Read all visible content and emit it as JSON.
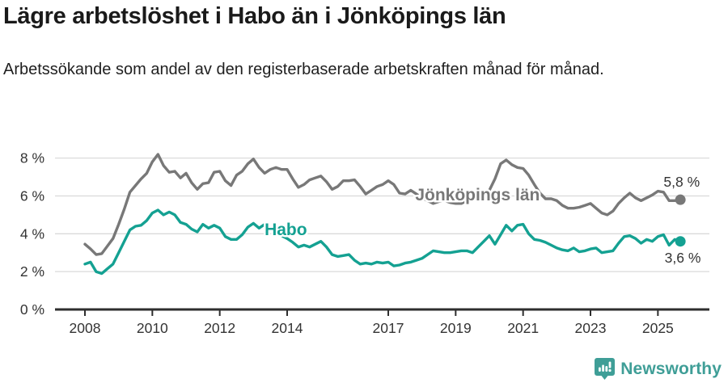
{
  "header": {
    "title": "Lägre arbetslöshet i Habo än i Jönköpings län",
    "subtitle": "Arbetssökande som andel av den registerbaserade arbetskraften månad för månad."
  },
  "chart_data": {
    "type": "line",
    "unit": "%",
    "grid": true,
    "x_start": 2008.0,
    "x_step_years": 0.1666667,
    "xlim": [
      2007.1,
      2026.5
    ],
    "ylim": [
      0,
      9.5
    ],
    "x_ticks": [
      2008,
      2010,
      2012,
      2014,
      2017,
      2019,
      2021,
      2023,
      2025
    ],
    "x_tick_labels": [
      "2008",
      "2010",
      "2012",
      "2014",
      "2017",
      "2019",
      "2021",
      "2023",
      "2025"
    ],
    "y_ticks": [
      0,
      2,
      4,
      6,
      8
    ],
    "y_tick_labels": [
      "0 %",
      "2 %",
      "4 %",
      "6 %",
      "8 %"
    ],
    "series": [
      {
        "name": "Jönköpings län",
        "color": "#787878",
        "end_label": "5,8 %",
        "end_value": 5.8,
        "values": [
          3.45,
          3.2,
          2.9,
          2.95,
          3.35,
          3.75,
          4.5,
          5.3,
          6.2,
          6.55,
          6.9,
          7.2,
          7.8,
          8.2,
          7.6,
          7.25,
          7.3,
          6.95,
          7.2,
          6.7,
          6.35,
          6.65,
          6.7,
          7.25,
          7.3,
          6.8,
          6.55,
          7.1,
          7.3,
          7.7,
          7.95,
          7.5,
          7.2,
          7.4,
          7.5,
          7.4,
          7.4,
          6.9,
          6.45,
          6.6,
          6.85,
          6.95,
          7.05,
          6.75,
          6.35,
          6.5,
          6.8,
          6.8,
          6.85,
          6.5,
          6.1,
          6.3,
          6.5,
          6.6,
          6.8,
          6.6,
          6.15,
          6.1,
          6.3,
          6.1,
          5.9,
          5.75,
          5.6,
          5.7,
          5.75,
          5.65,
          5.6,
          5.6,
          5.75,
          5.8,
          5.9,
          6.0,
          6.3,
          6.9,
          7.7,
          7.9,
          7.65,
          7.5,
          7.45,
          7.1,
          6.6,
          6.15,
          5.85,
          5.85,
          5.75,
          5.5,
          5.35,
          5.35,
          5.4,
          5.5,
          5.6,
          5.35,
          5.1,
          5.0,
          5.2,
          5.6,
          5.9,
          6.15,
          5.9,
          5.75,
          5.9,
          6.05,
          6.25,
          6.2,
          5.75,
          5.75,
          5.8
        ]
      },
      {
        "name": "Habo",
        "color": "#14a192",
        "end_label": "3,6 %",
        "end_value": 3.6,
        "values": [
          2.4,
          2.5,
          2.0,
          1.9,
          2.15,
          2.4,
          3.0,
          3.6,
          4.2,
          4.4,
          4.45,
          4.7,
          5.1,
          5.25,
          5.0,
          5.15,
          5.0,
          4.6,
          4.5,
          4.25,
          4.1,
          4.5,
          4.3,
          4.45,
          4.3,
          3.85,
          3.7,
          3.7,
          3.95,
          4.35,
          4.55,
          4.3,
          4.5,
          4.3,
          4.15,
          3.9,
          3.75,
          3.55,
          3.3,
          3.4,
          3.3,
          3.45,
          3.6,
          3.3,
          2.9,
          2.8,
          2.85,
          2.9,
          2.6,
          2.4,
          2.45,
          2.4,
          2.5,
          2.45,
          2.5,
          2.3,
          2.35,
          2.45,
          2.5,
          2.6,
          2.7,
          2.9,
          3.1,
          3.05,
          3.0,
          3.0,
          3.05,
          3.1,
          3.1,
          3.0,
          3.3,
          3.6,
          3.9,
          3.45,
          3.95,
          4.45,
          4.15,
          4.45,
          4.5,
          4.0,
          3.7,
          3.65,
          3.55,
          3.4,
          3.25,
          3.15,
          3.1,
          3.25,
          3.05,
          3.1,
          3.2,
          3.25,
          3.0,
          3.05,
          3.1,
          3.5,
          3.85,
          3.9,
          3.75,
          3.5,
          3.7,
          3.6,
          3.85,
          3.95,
          3.4,
          3.7,
          3.6
        ]
      }
    ],
    "annotations": [
      {
        "name": "series-label-habo",
        "text": "Habo",
        "year": 2013.33,
        "value": 3.93,
        "color": "#14a192",
        "bold": true,
        "halo": true,
        "size": 21
      },
      {
        "name": "series-label-jonkopings-lan",
        "text": "Jönköpings län",
        "year": 2017.8,
        "value": 5.77,
        "color": "#787878",
        "bold": true,
        "halo": true,
        "size": 21
      },
      {
        "name": "end-label-jonkopings-lan",
        "text": "5,8 %",
        "year": 2025.17,
        "value": 6.48,
        "color": "#333333",
        "bold": false,
        "halo": false,
        "size": 17.5
      },
      {
        "name": "end-label-habo",
        "text": "3,6 %",
        "year": 2025.2,
        "value": 2.48,
        "color": "#333333",
        "bold": false,
        "halo": false,
        "size": 17.5
      }
    ]
  },
  "footer": {
    "brand": "Newsworthy",
    "logo_icon": "newsworthy-speech-bubble-chart-icon",
    "brand_color": "#3f9e97"
  }
}
